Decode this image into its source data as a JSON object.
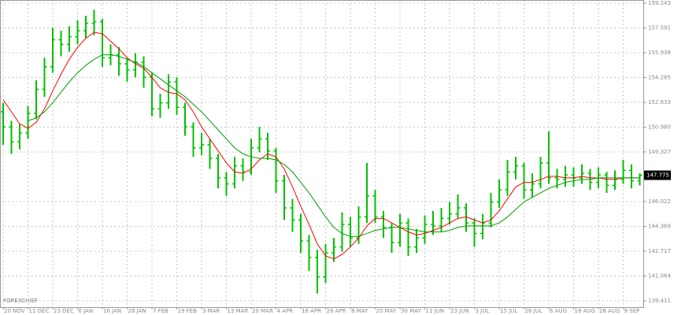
{
  "chart_data": {
    "type": "ohlc",
    "watermark": "FOREXCHIEF",
    "color": "#00c000",
    "grid": true,
    "ylim": [
      138.99,
      159.45
    ],
    "yticks": [
      159.243,
      157.591,
      155.938,
      154.285,
      152.633,
      {
        "value": 150.98,
        "label": "150.980"
      },
      149.327,
      146.022,
      144.369,
      142.717,
      141.064,
      139.411
    ],
    "current_price": 147.775,
    "categories": [
      "20 NOV",
      null,
      null,
      "11 DEC",
      null,
      null,
      "23 DEC",
      null,
      null,
      "6 JAN",
      null,
      null,
      "16 JAN",
      null,
      null,
      "28 JAN",
      null,
      null,
      "7 FEB",
      null,
      null,
      "19 FEB",
      null,
      null,
      "3 MAR",
      null,
      null,
      "13 MAR",
      null,
      null,
      "20 MAR",
      null,
      null,
      "4 APR",
      null,
      null,
      "16 APR",
      null,
      null,
      "28 APR",
      null,
      null,
      "8 MAY",
      null,
      null,
      "20 MAY",
      null,
      null,
      "30 MAY",
      null,
      null,
      "11 JUN",
      null,
      null,
      "23 JUN",
      null,
      null,
      "3 JUL",
      null,
      null,
      "15 JUL",
      null,
      null,
      "26 JUL",
      null,
      null,
      "6 AUG",
      null,
      null,
      "18 AUG",
      null,
      null,
      "28 AUG",
      null,
      null,
      "9 SEP",
      null,
      null
    ],
    "open": [
      152.0,
      151.0,
      150.0,
      150.6,
      151.9,
      153.5,
      155.0,
      156.8,
      156.5,
      157.0,
      157.4,
      157.9,
      158.0,
      155.6,
      155.8,
      155.2,
      154.8,
      155.3,
      154.3,
      152.2,
      152.6,
      154.0,
      152.3,
      151.0,
      149.6,
      149.8,
      148.9,
      147.6,
      147.2,
      148.4,
      148.0,
      149.6,
      150.2,
      149.4,
      147.4,
      145.6,
      144.8,
      143.4,
      142.3,
      141.0,
      142.6,
      143.0,
      144.5,
      143.6,
      145.0,
      146.4,
      145.0,
      144.3,
      143.3,
      144.6,
      143.0,
      143.6,
      144.5,
      144.4,
      144.9,
      145.2,
      145.6,
      144.6,
      143.9,
      144.6,
      146.0,
      146.8,
      148.0,
      148.4,
      146.8,
      147.2,
      148.6,
      147.6,
      147.5,
      147.8,
      147.6,
      147.9,
      147.3,
      147.8,
      147.1,
      147.5,
      148.1,
      147.4
    ],
    "high": [
      152.6,
      151.4,
      151.2,
      152.4,
      154.1,
      155.6,
      157.6,
      157.4,
      157.7,
      158.1,
      158.4,
      158.8,
      158.2,
      156.5,
      156.3,
      155.6,
      155.9,
      155.7,
      154.6,
      153.2,
      154.5,
      154.3,
      152.6,
      151.3,
      150.6,
      150.2,
      149.2,
      148.0,
      149.0,
      148.9,
      150.2,
      151.0,
      150.6,
      149.6,
      147.8,
      146.2,
      145.2,
      143.8,
      142.8,
      143.2,
      143.6,
      145.3,
      145.0,
      145.7,
      148.6,
      146.8,
      145.4,
      144.6,
      145.2,
      144.9,
      144.2,
      145.1,
      145.4,
      145.6,
      146.0,
      146.5,
      145.9,
      144.9,
      145.2,
      146.6,
      147.5,
      148.8,
      149.0,
      148.6,
      147.9,
      149.0,
      150.7,
      148.2,
      148.4,
      148.3,
      148.5,
      148.2,
      148.3,
      148.0,
      148.1,
      148.8,
      148.5,
      147.9
    ],
    "low": [
      149.8,
      149.2,
      149.5,
      150.2,
      151.5,
      153.0,
      154.6,
      155.7,
      156.0,
      156.5,
      156.9,
      157.1,
      155.0,
      155.1,
      154.4,
      154.0,
      154.3,
      153.6,
      151.7,
      151.6,
      152.2,
      151.8,
      150.4,
      149.0,
      149.1,
      148.2,
      146.9,
      146.4,
      146.9,
      147.4,
      147.8,
      149.3,
      148.8,
      146.6,
      144.8,
      144.0,
      142.6,
      141.4,
      139.9,
      140.6,
      142.0,
      142.7,
      143.0,
      143.2,
      144.6,
      144.6,
      143.6,
      142.6,
      143.0,
      142.4,
      142.6,
      143.2,
      143.8,
      144.0,
      144.5,
      144.9,
      144.0,
      143.0,
      143.5,
      144.3,
      145.6,
      146.4,
      147.5,
      146.2,
      146.3,
      146.9,
      147.2,
      146.9,
      147.0,
      147.0,
      147.2,
      146.8,
      146.9,
      146.6,
      146.8,
      147.2,
      146.9,
      147.1
    ],
    "close": [
      151.0,
      150.0,
      150.6,
      151.9,
      153.5,
      155.0,
      156.8,
      156.5,
      157.0,
      157.4,
      157.9,
      158.0,
      155.6,
      155.8,
      155.2,
      154.8,
      155.3,
      154.3,
      152.2,
      152.6,
      154.0,
      152.3,
      151.0,
      149.6,
      149.8,
      148.9,
      147.6,
      147.2,
      148.4,
      148.0,
      149.6,
      150.2,
      149.4,
      147.4,
      145.6,
      144.8,
      143.4,
      142.3,
      141.0,
      142.6,
      143.0,
      144.5,
      143.6,
      145.0,
      146.4,
      145.0,
      144.3,
      143.3,
      144.6,
      143.0,
      143.6,
      144.5,
      144.4,
      144.9,
      145.2,
      145.6,
      144.6,
      143.9,
      144.6,
      146.0,
      146.8,
      148.0,
      148.4,
      146.8,
      147.2,
      148.6,
      147.6,
      147.5,
      147.8,
      147.6,
      147.9,
      147.3,
      147.8,
      147.1,
      147.5,
      148.1,
      147.4,
      147.775
    ],
    "overlays": [
      {
        "color": "#ff0000",
        "values": [
          152.8,
          152.0,
          151.2,
          150.9,
          151.3,
          152.2,
          153.4,
          154.5,
          155.5,
          156.3,
          156.9,
          157.3,
          157.2,
          156.7,
          156.2,
          155.6,
          155.2,
          154.9,
          154.3,
          153.6,
          153.3,
          153.2,
          152.8,
          152.0,
          151.0,
          150.2,
          149.4,
          148.6,
          148.0,
          147.9,
          148.2,
          148.8,
          149.2,
          149.0,
          148.2,
          147.0,
          145.7,
          144.5,
          143.2,
          142.4,
          142.2,
          142.5,
          143.0,
          143.6,
          144.4,
          144.9,
          144.9,
          144.6,
          144.3,
          144.0,
          143.8,
          143.9,
          144.1,
          144.3,
          144.6,
          144.9,
          145.0,
          144.8,
          144.6,
          144.8,
          145.4,
          146.2,
          147.0,
          147.3,
          147.3,
          147.5,
          147.7,
          147.7,
          147.6,
          147.6,
          147.7,
          147.6,
          147.6,
          147.5,
          147.5,
          147.6,
          147.6,
          147.6
        ]
      },
      {
        "color": "#00a000",
        "values": [
          null,
          null,
          null,
          151.4,
          151.6,
          152.0,
          152.6,
          153.3,
          154.0,
          154.6,
          155.1,
          155.5,
          155.8,
          155.8,
          155.7,
          155.5,
          155.3,
          155.0,
          154.6,
          154.2,
          153.8,
          153.4,
          153.0,
          152.5,
          152.0,
          151.4,
          150.8,
          150.2,
          149.6,
          149.2,
          149.0,
          148.9,
          148.9,
          148.8,
          148.5,
          148.0,
          147.3,
          146.6,
          145.8,
          145.0,
          144.3,
          143.9,
          143.7,
          143.7,
          143.9,
          144.1,
          144.2,
          144.3,
          144.3,
          144.2,
          144.1,
          144.0,
          144.0,
          144.0,
          144.1,
          144.3,
          144.4,
          144.4,
          144.4,
          144.4,
          144.6,
          145.0,
          145.5,
          146.0,
          146.3,
          146.6,
          146.9,
          147.1,
          147.3,
          147.4,
          147.5,
          147.5,
          147.6,
          147.6,
          147.6,
          147.6,
          147.6,
          147.6
        ]
      }
    ]
  }
}
